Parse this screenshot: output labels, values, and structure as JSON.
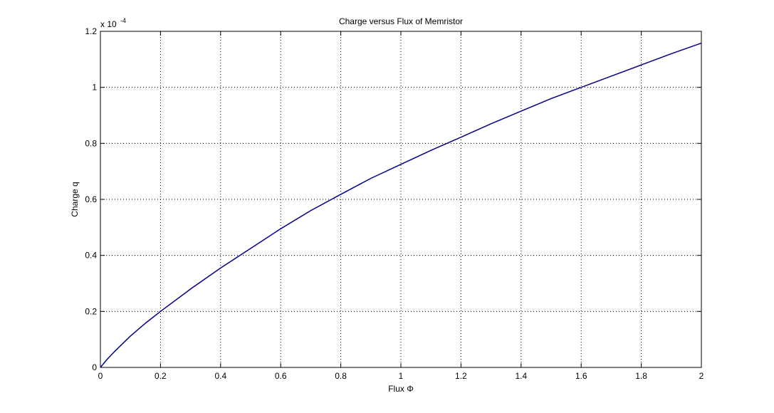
{
  "chart_data": {
    "type": "line",
    "title": "Charge versus Flux of Memristor",
    "xlabel": "Flux Φ",
    "ylabel": "Charge q",
    "exponent_base": "x 10",
    "exponent_power": "-4",
    "xlim": [
      0,
      2
    ],
    "ylim": [
      0,
      1.2
    ],
    "y_scale_factor": 0.0001,
    "x_ticks": [
      0,
      0.2,
      0.4,
      0.6,
      0.8,
      1,
      1.2,
      1.4,
      1.6,
      1.8,
      2
    ],
    "x_tick_labels": [
      "0",
      "0.2",
      "0.4",
      "0.6",
      "0.8",
      "1",
      "1.2",
      "1.4",
      "1.6",
      "1.8",
      "2"
    ],
    "y_ticks": [
      0,
      0.2,
      0.4,
      0.6,
      0.8,
      1,
      1.2
    ],
    "y_tick_labels": [
      "0",
      "0.2",
      "0.4",
      "0.6",
      "0.8",
      "1",
      "1.2"
    ],
    "grid": true,
    "grid_style": "dotted",
    "series_color": "#00008b",
    "series": [
      {
        "x": [
          0,
          0.02,
          0.05,
          0.1,
          0.15,
          0.2,
          0.3,
          0.4,
          0.5,
          0.6,
          0.7,
          0.8,
          0.9,
          1.0,
          1.1,
          1.2,
          1.3,
          1.4,
          1.5,
          1.6,
          1.7,
          1.8,
          1.9,
          2.0
        ],
        "y": [
          0,
          0.026,
          0.06,
          0.112,
          0.158,
          0.2,
          0.28,
          0.355,
          0.425,
          0.495,
          0.56,
          0.618,
          0.675,
          0.725,
          0.775,
          0.822,
          0.87,
          0.915,
          0.96,
          1.0,
          1.04,
          1.08,
          1.12,
          1.158
        ]
      }
    ]
  }
}
